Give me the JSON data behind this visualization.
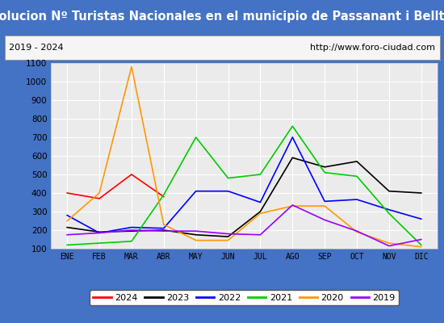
{
  "title": "Evolucion Nº Turistas Nacionales en el municipio de Passanant i Belltall",
  "subtitle_left": "2019 - 2024",
  "subtitle_right": "http://www.foro-ciudad.com",
  "months": [
    "ENE",
    "FEB",
    "MAR",
    "ABR",
    "MAY",
    "JUN",
    "JUL",
    "AGO",
    "SEP",
    "OCT",
    "NOV",
    "DIC"
  ],
  "ylim": [
    100,
    1100
  ],
  "yticks": [
    100,
    200,
    300,
    400,
    500,
    600,
    700,
    800,
    900,
    1000,
    1100
  ],
  "series": {
    "2024": {
      "color": "#ff0000",
      "data": [
        400,
        370,
        500,
        380,
        null,
        null,
        null,
        null,
        null,
        null,
        null,
        null
      ]
    },
    "2023": {
      "color": "#000000",
      "data": [
        215,
        190,
        195,
        200,
        175,
        165,
        300,
        590,
        540,
        570,
        410,
        400
      ]
    },
    "2022": {
      "color": "#0000ff",
      "data": [
        280,
        185,
        215,
        210,
        410,
        410,
        350,
        700,
        355,
        365,
        310,
        260
      ]
    },
    "2021": {
      "color": "#00cc00",
      "data": [
        120,
        130,
        140,
        390,
        700,
        480,
        500,
        760,
        510,
        490,
        290,
        120
      ]
    },
    "2020": {
      "color": "#ff9900",
      "data": [
        250,
        400,
        1080,
        230,
        145,
        145,
        290,
        330,
        330,
        190,
        130,
        110
      ]
    },
    "2019": {
      "color": "#9900ff",
      "data": [
        175,
        185,
        200,
        195,
        195,
        180,
        175,
        335,
        255,
        195,
        115,
        150
      ]
    }
  },
  "title_bg_color": "#4472c4",
  "title_text_color": "#ffffff",
  "plot_bg_color": "#ebebeb",
  "grid_color": "#ffffff",
  "box_bg_color": "#f5f5f5",
  "title_fontsize": 10.5,
  "legend_order": [
    "2024",
    "2023",
    "2022",
    "2021",
    "2020",
    "2019"
  ]
}
